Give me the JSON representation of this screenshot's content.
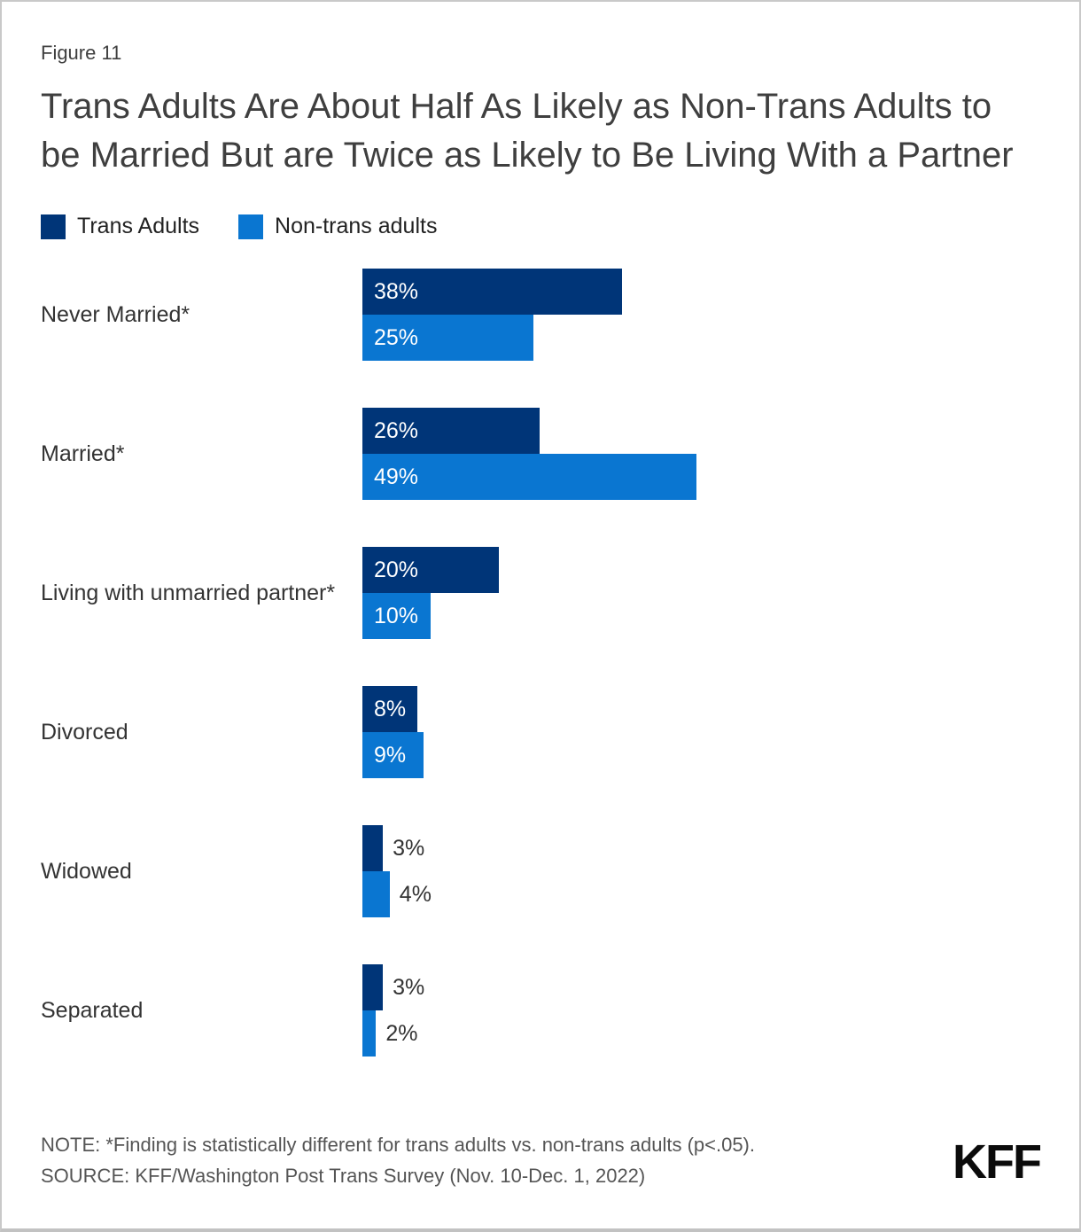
{
  "header": {
    "figure_label": "Figure 11",
    "title": "Trans Adults Are About Half As Likely as Non-Trans Adults to be Married But are Twice as Likely to Be Living With a Partner"
  },
  "legend": {
    "items": [
      {
        "label": "Trans Adults",
        "color": "#003578"
      },
      {
        "label": "Non-trans adults",
        "color": "#0A76D1"
      }
    ]
  },
  "chart_data": {
    "type": "bar",
    "orientation": "horizontal",
    "categories": [
      "Never Married*",
      "Married*",
      "Living with unmarried partner*",
      "Divorced",
      "Widowed",
      "Separated"
    ],
    "series": [
      {
        "name": "Trans Adults",
        "color": "#003578",
        "values": [
          38,
          26,
          20,
          8,
          3,
          3
        ]
      },
      {
        "name": "Non-trans adults",
        "color": "#0A76D1",
        "values": [
          25,
          49,
          10,
          9,
          4,
          2
        ]
      }
    ],
    "value_suffix": "%",
    "xlim": [
      0,
      100
    ],
    "grid": false,
    "legend_position": "top-left",
    "value_labels": "inside bars when value >= 8, otherwise outside right"
  },
  "footer": {
    "note": "NOTE: *Finding is statistically different for trans adults vs. non-trans adults (p<.05).",
    "source": "SOURCE: KFF/Washington Post Trans Survey (Nov. 10-Dec. 1, 2022)",
    "logo": "KFF"
  }
}
